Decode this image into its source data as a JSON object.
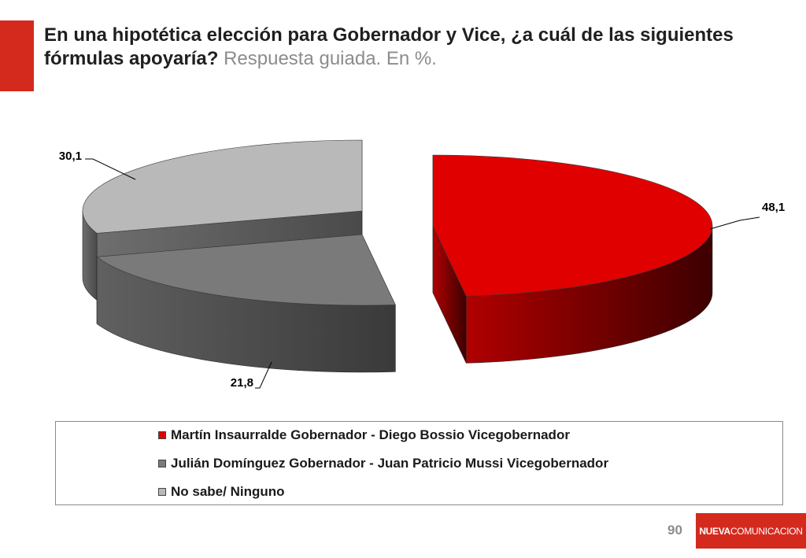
{
  "header": {
    "title": "En una hipotética elección para Gobernador y Vice, ¿a cuál de las siguientes fórmulas apoyaría?",
    "subtitle": "Respuesta guiada. En %."
  },
  "chart_data": {
    "type": "pie",
    "three_d": true,
    "exploded": true,
    "legend_position": "bottom",
    "series": [
      {
        "name": "Martín Insaurralde Gobernador - Diego Bossio Vicegobernador",
        "value": 48.1,
        "label": "48,1",
        "color": "#e00000"
      },
      {
        "name": "Julián Domínguez Gobernador - Juan Patricio Mussi Vicegobernador",
        "value": 21.8,
        "label": "21,8",
        "color": "#7a7a7a"
      },
      {
        "name": "No sabe/ Ninguno",
        "value": 30.1,
        "label": "30,1",
        "color": "#b9b9b9"
      }
    ]
  },
  "footer": {
    "page_number": "90",
    "brand_prefix": "NUEVA",
    "brand_suffix": "COMUNICACION"
  }
}
